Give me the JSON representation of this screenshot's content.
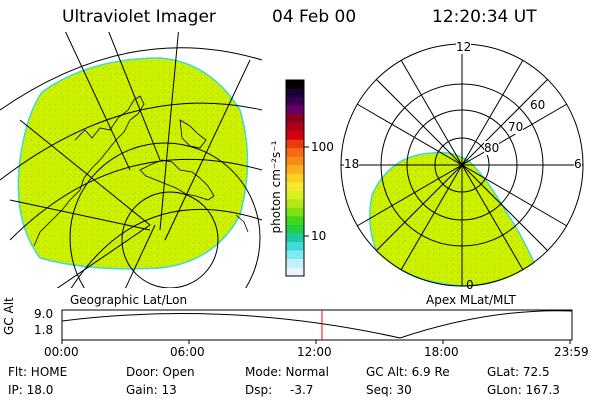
{
  "header": {
    "instrument": "Ultraviolet Imager",
    "date": "04 Feb 00",
    "time": "12:20:34 UT"
  },
  "colorbar": {
    "unit_label": "photon cm⁻²s⁻¹",
    "ticks": [
      "100",
      "10"
    ],
    "colors": [
      "#000000",
      "#1a0033",
      "#3a0050",
      "#660066",
      "#8a0022",
      "#b00018",
      "#d40010",
      "#ec3a10",
      "#f46a14",
      "#f88a18",
      "#fcb020",
      "#fcd020",
      "#f4e830",
      "#d8f020",
      "#b0e818",
      "#80e010",
      "#40d818",
      "#20d040",
      "#20c8a0",
      "#40d8d8",
      "#80e8f0",
      "#c0f0f8",
      "#e8f4f8"
    ]
  },
  "left_panel": {
    "caption": "Geographic Lat/Lon",
    "fill_color": "#c8f000"
  },
  "right_panel": {
    "caption": "Apex MLat/MLT",
    "mlt_labels": {
      "top": "12",
      "left": "18",
      "right": "6",
      "bottom": "0"
    },
    "lat_labels": [
      "60",
      "70",
      "80"
    ],
    "fill_color": "#c8f000"
  },
  "timeline": {
    "axis_label": "GC Alt",
    "y_max": "9.0",
    "y_min": "1.8",
    "times": [
      "00:00",
      "06:00",
      "12:00",
      "18:00",
      "23:59"
    ],
    "marker_time": "12:20",
    "marker_color": "#ff0000"
  },
  "info": {
    "flt": "Flt: HOME",
    "ip": "IP: 18.0",
    "door": "Door: Open",
    "gain": "Gain: 13",
    "mode": "Mode: Normal",
    "dsp_label": "Dsp:",
    "dsp_value": "-3.7",
    "gc_alt": "GC Alt: 6.9 Re",
    "seq": "Seq: 30",
    "glat": "GLat:  72.5",
    "glon": "GLon: 167.3"
  }
}
